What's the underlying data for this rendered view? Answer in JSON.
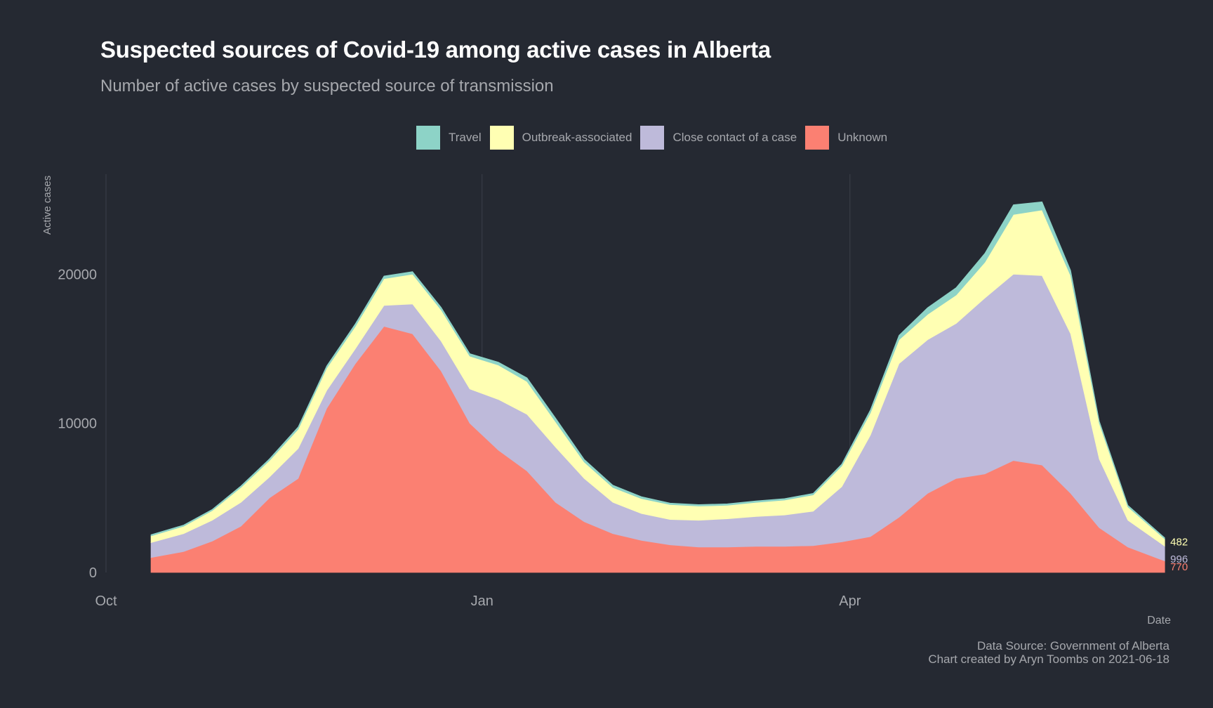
{
  "title": "Suspected sources of Covid-19 among active cases in Alberta",
  "subtitle": "Number of active cases by suspected source of transmission",
  "legend": [
    {
      "label": "Travel",
      "color": "#8dd3c7"
    },
    {
      "label": "Outbreak-associated",
      "color": "#ffffb3"
    },
    {
      "label": "Close contact of a case",
      "color": "#bebada"
    },
    {
      "label": "Unknown",
      "color": "#fb8072"
    }
  ],
  "caption": {
    "line1": "Data Source: Government of Alberta",
    "line2": "Chart created by Aryn Toombs on 2021-06-18"
  },
  "chart_data": {
    "type": "area",
    "stacked": true,
    "title": "Suspected sources of Covid-19 among active cases in Alberta",
    "subtitle": "Number of active cases by suspected source of transmission",
    "xlabel": "Date",
    "ylabel": "Active cases",
    "x_ticks": [
      "Oct",
      "Jan",
      "Apr"
    ],
    "x_tick_dates": [
      "2020-10-01",
      "2021-01-01",
      "2021-04-01"
    ],
    "y_ticks": [
      0,
      10000,
      20000
    ],
    "ylim": [
      0,
      26700
    ],
    "xlim": [
      "2020-10-01",
      "2021-06-18"
    ],
    "legend_position": "top",
    "grid": "vertical major lines only",
    "x": [
      "2020-10-12",
      "2020-10-20",
      "2020-10-27",
      "2020-11-03",
      "2020-11-10",
      "2020-11-17",
      "2020-11-24",
      "2020-12-01",
      "2020-12-08",
      "2020-12-15",
      "2020-12-22",
      "2020-12-29",
      "2021-01-05",
      "2021-01-12",
      "2021-01-19",
      "2021-01-26",
      "2021-02-02",
      "2021-02-09",
      "2021-02-16",
      "2021-02-23",
      "2021-03-02",
      "2021-03-09",
      "2021-03-16",
      "2021-03-23",
      "2021-03-30",
      "2021-04-06",
      "2021-04-13",
      "2021-04-20",
      "2021-04-27",
      "2021-05-04",
      "2021-05-11",
      "2021-05-18",
      "2021-05-25",
      "2021-06-01",
      "2021-06-08",
      "2021-06-17"
    ],
    "series": [
      {
        "name": "Unknown",
        "color": "#fb8072",
        "values": [
          1000,
          1400,
          2100,
          3100,
          5000,
          6300,
          11000,
          14000,
          16500,
          16000,
          13500,
          10000,
          8200,
          6800,
          4700,
          3400,
          2600,
          2150,
          1850,
          1700,
          1700,
          1750,
          1750,
          1800,
          2050,
          2400,
          3700,
          5300,
          6300,
          6600,
          7500,
          7200,
          5300,
          3000,
          1700,
          770
        ]
      },
      {
        "name": "Close contact of a case",
        "color": "#bebada",
        "values": [
          1000,
          1200,
          1400,
          1600,
          1400,
          2000,
          1200,
          1000,
          1400,
          2000,
          2000,
          2300,
          3400,
          3800,
          3700,
          2900,
          2100,
          1800,
          1700,
          1800,
          1900,
          2000,
          2100,
          2300,
          3700,
          6800,
          10300,
          10300,
          10400,
          11800,
          12500,
          12700,
          10700,
          4600,
          1800,
          996
        ]
      },
      {
        "name": "Outbreak-associated",
        "color": "#ffffb3",
        "values": [
          450,
          500,
          650,
          1000,
          1100,
          1300,
          1500,
          1500,
          1800,
          2000,
          2100,
          2200,
          2300,
          2200,
          1700,
          1100,
          1000,
          1000,
          1000,
          950,
          900,
          950,
          1000,
          1100,
          1400,
          1500,
          1600,
          1700,
          1900,
          2400,
          4000,
          4400,
          3900,
          2400,
          900,
          482
        ]
      },
      {
        "name": "Travel",
        "color": "#8dd3c7",
        "values": [
          80,
          80,
          80,
          100,
          120,
          150,
          150,
          170,
          170,
          170,
          170,
          170,
          200,
          250,
          250,
          180,
          150,
          130,
          100,
          100,
          100,
          100,
          100,
          100,
          120,
          200,
          300,
          450,
          500,
          600,
          650,
          550,
          350,
          150,
          100,
          80
        ]
      }
    ],
    "end_labels": [
      {
        "series": "Outbreak-associated",
        "text": "482",
        "color": "#ffffb3"
      },
      {
        "series": "Close contact of a case",
        "text": "996",
        "color": "#bebada"
      },
      {
        "series": "Unknown",
        "text": "770",
        "color": "#fb8072"
      }
    ]
  }
}
